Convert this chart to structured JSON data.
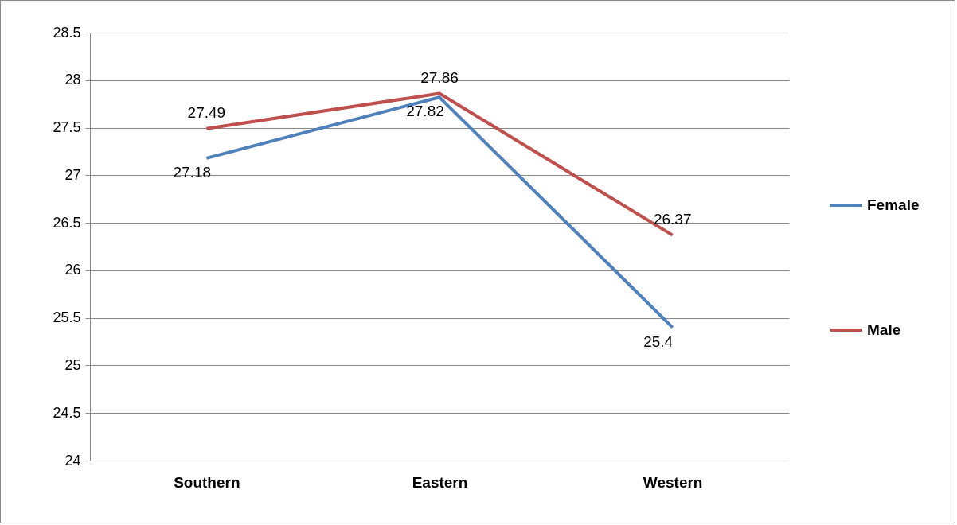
{
  "chart_data": {
    "type": "line",
    "categories": [
      "Southern",
      "Eastern",
      "Western"
    ],
    "series": [
      {
        "name": "Female",
        "color": "#4f81bd",
        "values": [
          27.18,
          27.82,
          25.4
        ]
      },
      {
        "name": "Male",
        "color": "#c0504d",
        "values": [
          27.49,
          27.86,
          26.37
        ]
      }
    ],
    "ylim": [
      24,
      28.5
    ],
    "yticks": [
      24,
      24.5,
      25,
      25.5,
      26,
      26.5,
      27,
      27.5,
      28,
      28.5
    ],
    "grid": "y",
    "legend": "right",
    "data_labels": true
  }
}
